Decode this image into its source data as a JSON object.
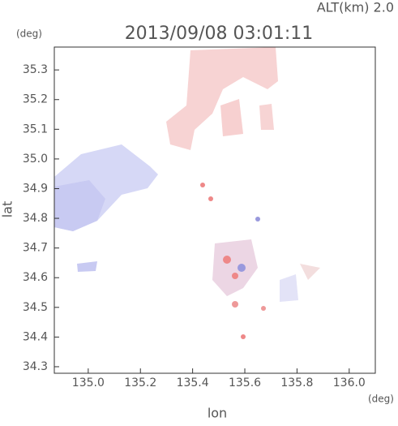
{
  "chart_data": {
    "type": "map",
    "title": "2013/09/08 03:01:11",
    "altitude_label": "ALT(km)  2.0",
    "ylabel": "lat",
    "yunit": "(deg)",
    "xlabel": "lon",
    "xunit": "(deg)",
    "xlim": [
      134.87,
      136.1
    ],
    "ylim": [
      34.278,
      35.377
    ],
    "xticks": [
      {
        "value": 135.0,
        "label": "135.0"
      },
      {
        "value": 135.2,
        "label": "135.2"
      },
      {
        "value": 135.4,
        "label": "135.4"
      },
      {
        "value": 135.6,
        "label": "135.6"
      },
      {
        "value": 135.8,
        "label": "135.8"
      },
      {
        "value": 136.0,
        "label": "136.0"
      }
    ],
    "yticks": [
      {
        "value": 34.3,
        "label": "34.3"
      },
      34.4,
      34.5,
      34.6,
      34.7,
      34.8,
      34.9,
      {
        "value": 35.0,
        "label": "35.0"
      },
      35.1,
      35.2,
      35.3
    ]
  }
}
